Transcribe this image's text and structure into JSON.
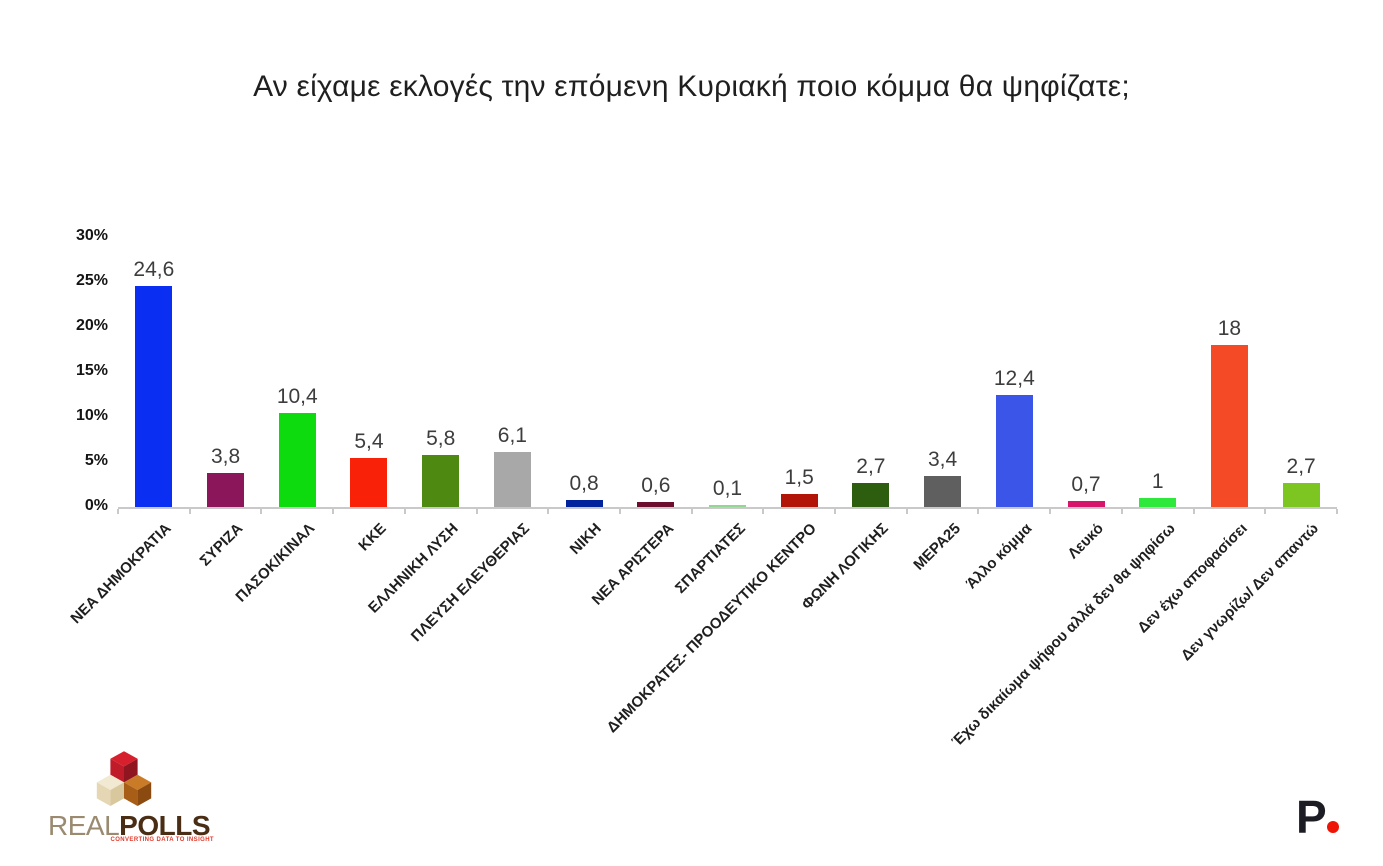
{
  "title": "Αν είχαμε εκλογές την επόμενη Κυριακή ποιο κόμμα θα ψηφίζατε;",
  "chart_data": {
    "type": "bar",
    "title": "Αν είχαμε εκλογές την επόμενη Κυριακή ποιο κόμμα θα ψηφίζατε;",
    "xlabel": "",
    "ylabel": "",
    "ylim": [
      0,
      30
    ],
    "grid": false,
    "legend": "none",
    "yticks": [
      "0%",
      "5%",
      "10%",
      "15%",
      "20%",
      "25%",
      "30%"
    ],
    "categories": [
      "ΝΕΑ ΔΗΜΟΚΡΑΤΙΑ",
      "ΣΥΡΙΖΑ",
      "ΠΑΣΟΚ/ΚΙΝΑΛ",
      "ΚΚΕ",
      "ΕΛΛΗΝΙΚΗ ΛΥΣΗ",
      "ΠΛΕΥΣΗ ΕΛΕΥΘΕΡΙΑΣ",
      "ΝΙΚΗ",
      "ΝΕΑ ΑΡΙΣΤΕΡΑ",
      "ΣΠΑΡΤΙΑΤΕΣ",
      "ΔΗΜΟΚΡΑΤΕΣ- ΠΡΟΟΔΕΥΤΙΚΟ ΚΕΝΤΡΟ",
      "ΦΩΝΗ ΛΟΓΙΚΗΣ",
      "ΜΕΡΑ25",
      "Άλλο κόμμα",
      "Λευκό",
      "Έχω δικαίωμα ψήφου αλλά δεν θα ψηφίσω",
      "Δεν έχω αποφασίσει",
      "Δεν γνωρίζω/ Δεν απαντώ"
    ],
    "values": [
      24.6,
      3.8,
      10.4,
      5.4,
      5.8,
      6.1,
      0.8,
      0.6,
      0.1,
      1.5,
      2.7,
      3.4,
      12.4,
      0.7,
      1,
      18,
      2.7
    ],
    "value_labels": [
      "24,6",
      "3,8",
      "10,4",
      "5,4",
      "5,8",
      "6,1",
      "0,8",
      "0,6",
      "0,1",
      "1,5",
      "2,7",
      "3,4",
      "12,4",
      "0,7",
      "1",
      "18",
      "2,7"
    ],
    "bar_colors": [
      "#0b2ff2",
      "#8b1659",
      "#0ddb0d",
      "#f92108",
      "#4e8a12",
      "#a8a8a8",
      "#02219c",
      "#6b0e2e",
      "#93d694",
      "#b21407",
      "#2d5e10",
      "#5f5f5f",
      "#3a55e8",
      "#d6156b",
      "#2ee83c",
      "#f44a26",
      "#7dc622"
    ]
  },
  "footer": {
    "realpolls": {
      "text_real": "REAL",
      "text_polls": "POLLS",
      "tagline": "CONVERTING DATA TO INSIGHT",
      "cube_red": "#d7202e",
      "cube_cream": "#f0e6ce",
      "cube_brown": "#b06019"
    },
    "p_logo": {
      "letter": "P",
      "dot_color": "#ee1507",
      "letter_color": "#1c1c24"
    }
  }
}
